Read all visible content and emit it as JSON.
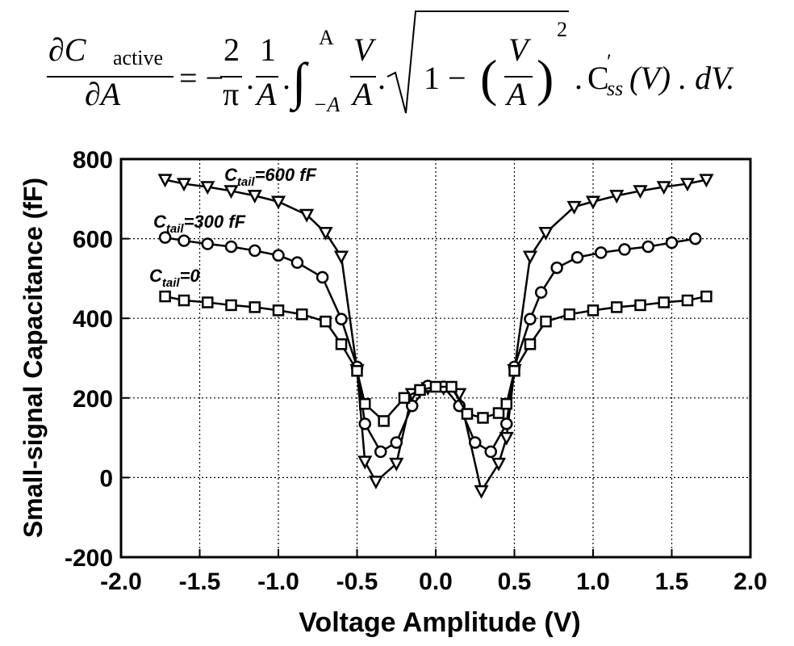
{
  "equation": {
    "lhs_numerator": "∂C",
    "lhs_sub": "active",
    "lhs_denominator": "∂A",
    "equals_minus": "= −",
    "frac1_num": "2",
    "frac1_den": "π",
    "dot1": ".",
    "frac2_num": "1",
    "frac2_den": "A",
    "dot2": ".",
    "integral": "∫",
    "upper_limit": "A",
    "lower_limit": "−A",
    "frac3_num": "V",
    "frac3_den": "A",
    "dot3": ".",
    "sqrt_inner": "1 −",
    "paren_open": "(",
    "frac4_num": "V",
    "frac4_den": "A",
    "paren_close": ")",
    "exponent": "2",
    "dot4": ".",
    "c": "C",
    "prime": "′",
    "sub_ss": "ss",
    "tail": "(V) . dV."
  },
  "chart_data": {
    "type": "line",
    "x_label": "Voltage Amplitude (V)",
    "y_label": "Small-signal Capacitance (fF)",
    "xlim": [
      -2,
      2
    ],
    "ylim": [
      -200,
      800
    ],
    "xticks": [
      {
        "value": -2,
        "label": "-2.0"
      },
      -1.5,
      {
        "value": -1,
        "label": "-1.0"
      },
      -0.5,
      {
        "value": 0,
        "label": "0.0"
      },
      0.5,
      {
        "value": 1,
        "label": "1.0"
      },
      1.5,
      {
        "value": 2,
        "label": "2.0"
      }
    ],
    "yticks": [
      -200,
      0,
      200,
      400,
      600,
      800
    ],
    "grid": true,
    "annotations": [
      {
        "text": "C",
        "sub": "tail",
        "rest": "=600 fF"
      },
      {
        "text": "C",
        "sub": "tail",
        "rest": "=300 fF"
      },
      {
        "text": "C",
        "sub": "tail",
        "rest": "=0"
      }
    ],
    "series": [
      {
        "marker": "triangle",
        "color": "#000000",
        "x": [
          -1.72,
          -1.6,
          -1.45,
          -1.3,
          -1.15,
          -1.0,
          -0.82,
          -0.7,
          -0.6,
          -0.5,
          -0.45,
          -0.38,
          -0.25,
          -0.15,
          -0.05,
          0.05,
          0.15,
          0.29,
          0.4,
          0.45,
          0.5,
          0.6,
          0.7,
          0.88,
          1.0,
          1.15,
          1.3,
          1.45,
          1.6,
          1.72
        ],
        "values": [
          748,
          738,
          730,
          720,
          708,
          693,
          660,
          615,
          555,
          270,
          40,
          -10,
          35,
          210,
          225,
          225,
          210,
          -34,
          35,
          100,
          270,
          555,
          615,
          680,
          693,
          708,
          720,
          730,
          738,
          748
        ]
      },
      {
        "marker": "circle",
        "color": "#000000",
        "x": [
          -1.72,
          -1.6,
          -1.45,
          -1.3,
          -1.15,
          -1.0,
          -0.88,
          -0.72,
          -0.6,
          -0.5,
          -0.45,
          -0.35,
          -0.25,
          -0.15,
          -0.05,
          0.05,
          0.15,
          0.25,
          0.35,
          0.45,
          0.5,
          0.6,
          0.67,
          0.77,
          0.9,
          1.05,
          1.2,
          1.35,
          1.5,
          1.65
        ],
        "values": [
          603,
          595,
          587,
          580,
          570,
          558,
          540,
          503,
          398,
          278,
          135,
          65,
          88,
          180,
          230,
          228,
          180,
          88,
          65,
          135,
          278,
          398,
          465,
          527,
          553,
          565,
          573,
          580,
          590,
          600
        ]
      },
      {
        "marker": "square",
        "color": "#000000",
        "x": [
          -1.72,
          -1.6,
          -1.45,
          -1.3,
          -1.15,
          -1.0,
          -0.85,
          -0.7,
          -0.6,
          -0.5,
          -0.45,
          -0.33,
          -0.2,
          -0.1,
          0.0,
          0.1,
          0.2,
          0.3,
          0.4,
          0.45,
          0.5,
          0.6,
          0.7,
          0.85,
          1.0,
          1.15,
          1.3,
          1.45,
          1.6,
          1.72
        ],
        "values": [
          455,
          445,
          440,
          433,
          428,
          420,
          410,
          392,
          335,
          268,
          185,
          142,
          200,
          220,
          228,
          228,
          160,
          150,
          162,
          185,
          268,
          335,
          392,
          410,
          420,
          428,
          433,
          440,
          445,
          455
        ]
      }
    ]
  }
}
